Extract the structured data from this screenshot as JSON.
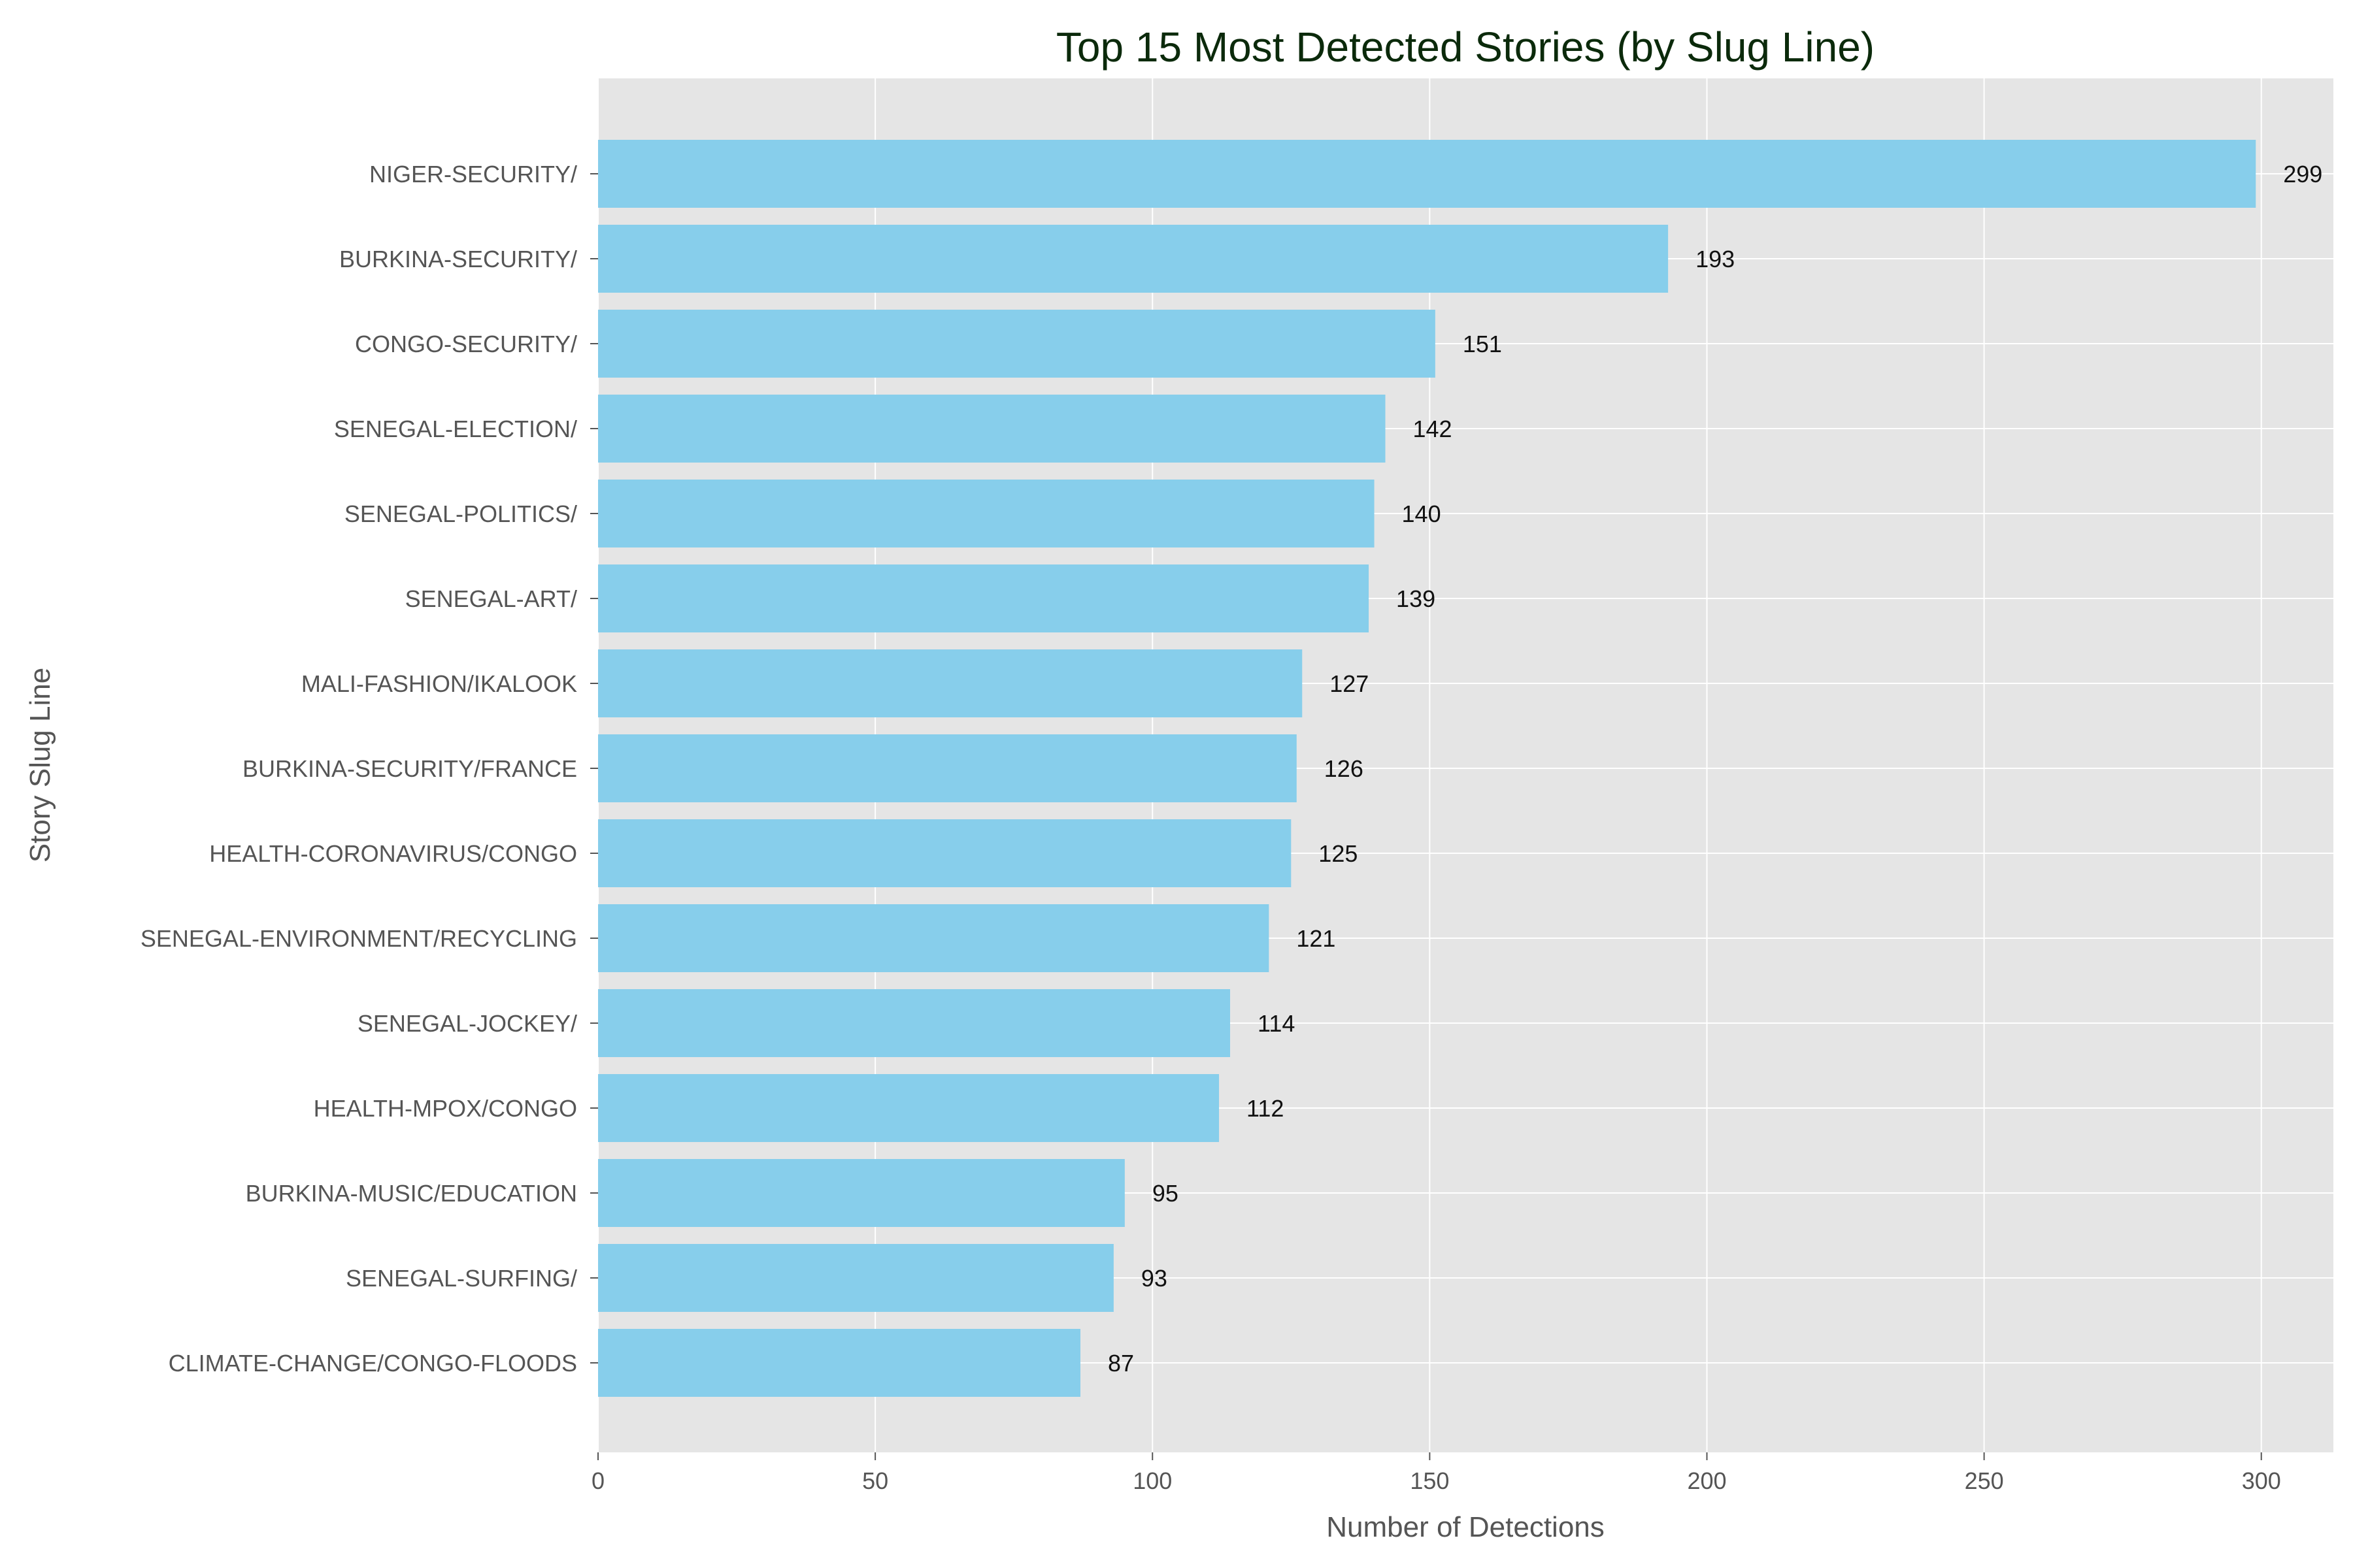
{
  "chart_data": {
    "type": "bar",
    "orientation": "horizontal",
    "title": "Top 15 Most Detected Stories (by Slug Line)",
    "xlabel": "Number of Detections",
    "ylabel": "Story Slug Line",
    "xlim": [
      0,
      313
    ],
    "xticks": [
      0,
      50,
      100,
      150,
      200,
      250,
      300
    ],
    "grid": true,
    "bar_color": "#87CEEB",
    "background_color": "#E5E5E5",
    "categories": [
      "NIGER-SECURITY/",
      "BURKINA-SECURITY/",
      "CONGO-SECURITY/",
      "SENEGAL-ELECTION/",
      "SENEGAL-POLITICS/",
      "SENEGAL-ART/",
      "MALI-FASHION/IKALOOK",
      "BURKINA-SECURITY/FRANCE",
      "HEALTH-CORONAVIRUS/CONGO",
      "SENEGAL-ENVIRONMENT/RECYCLING",
      "SENEGAL-JOCKEY/",
      "HEALTH-MPOX/CONGO",
      "BURKINA-MUSIC/EDUCATION",
      "SENEGAL-SURFING/",
      "CLIMATE-CHANGE/CONGO-FLOODS"
    ],
    "values": [
      299,
      193,
      151,
      142,
      140,
      139,
      127,
      126,
      125,
      121,
      114,
      112,
      95,
      93,
      87
    ]
  }
}
